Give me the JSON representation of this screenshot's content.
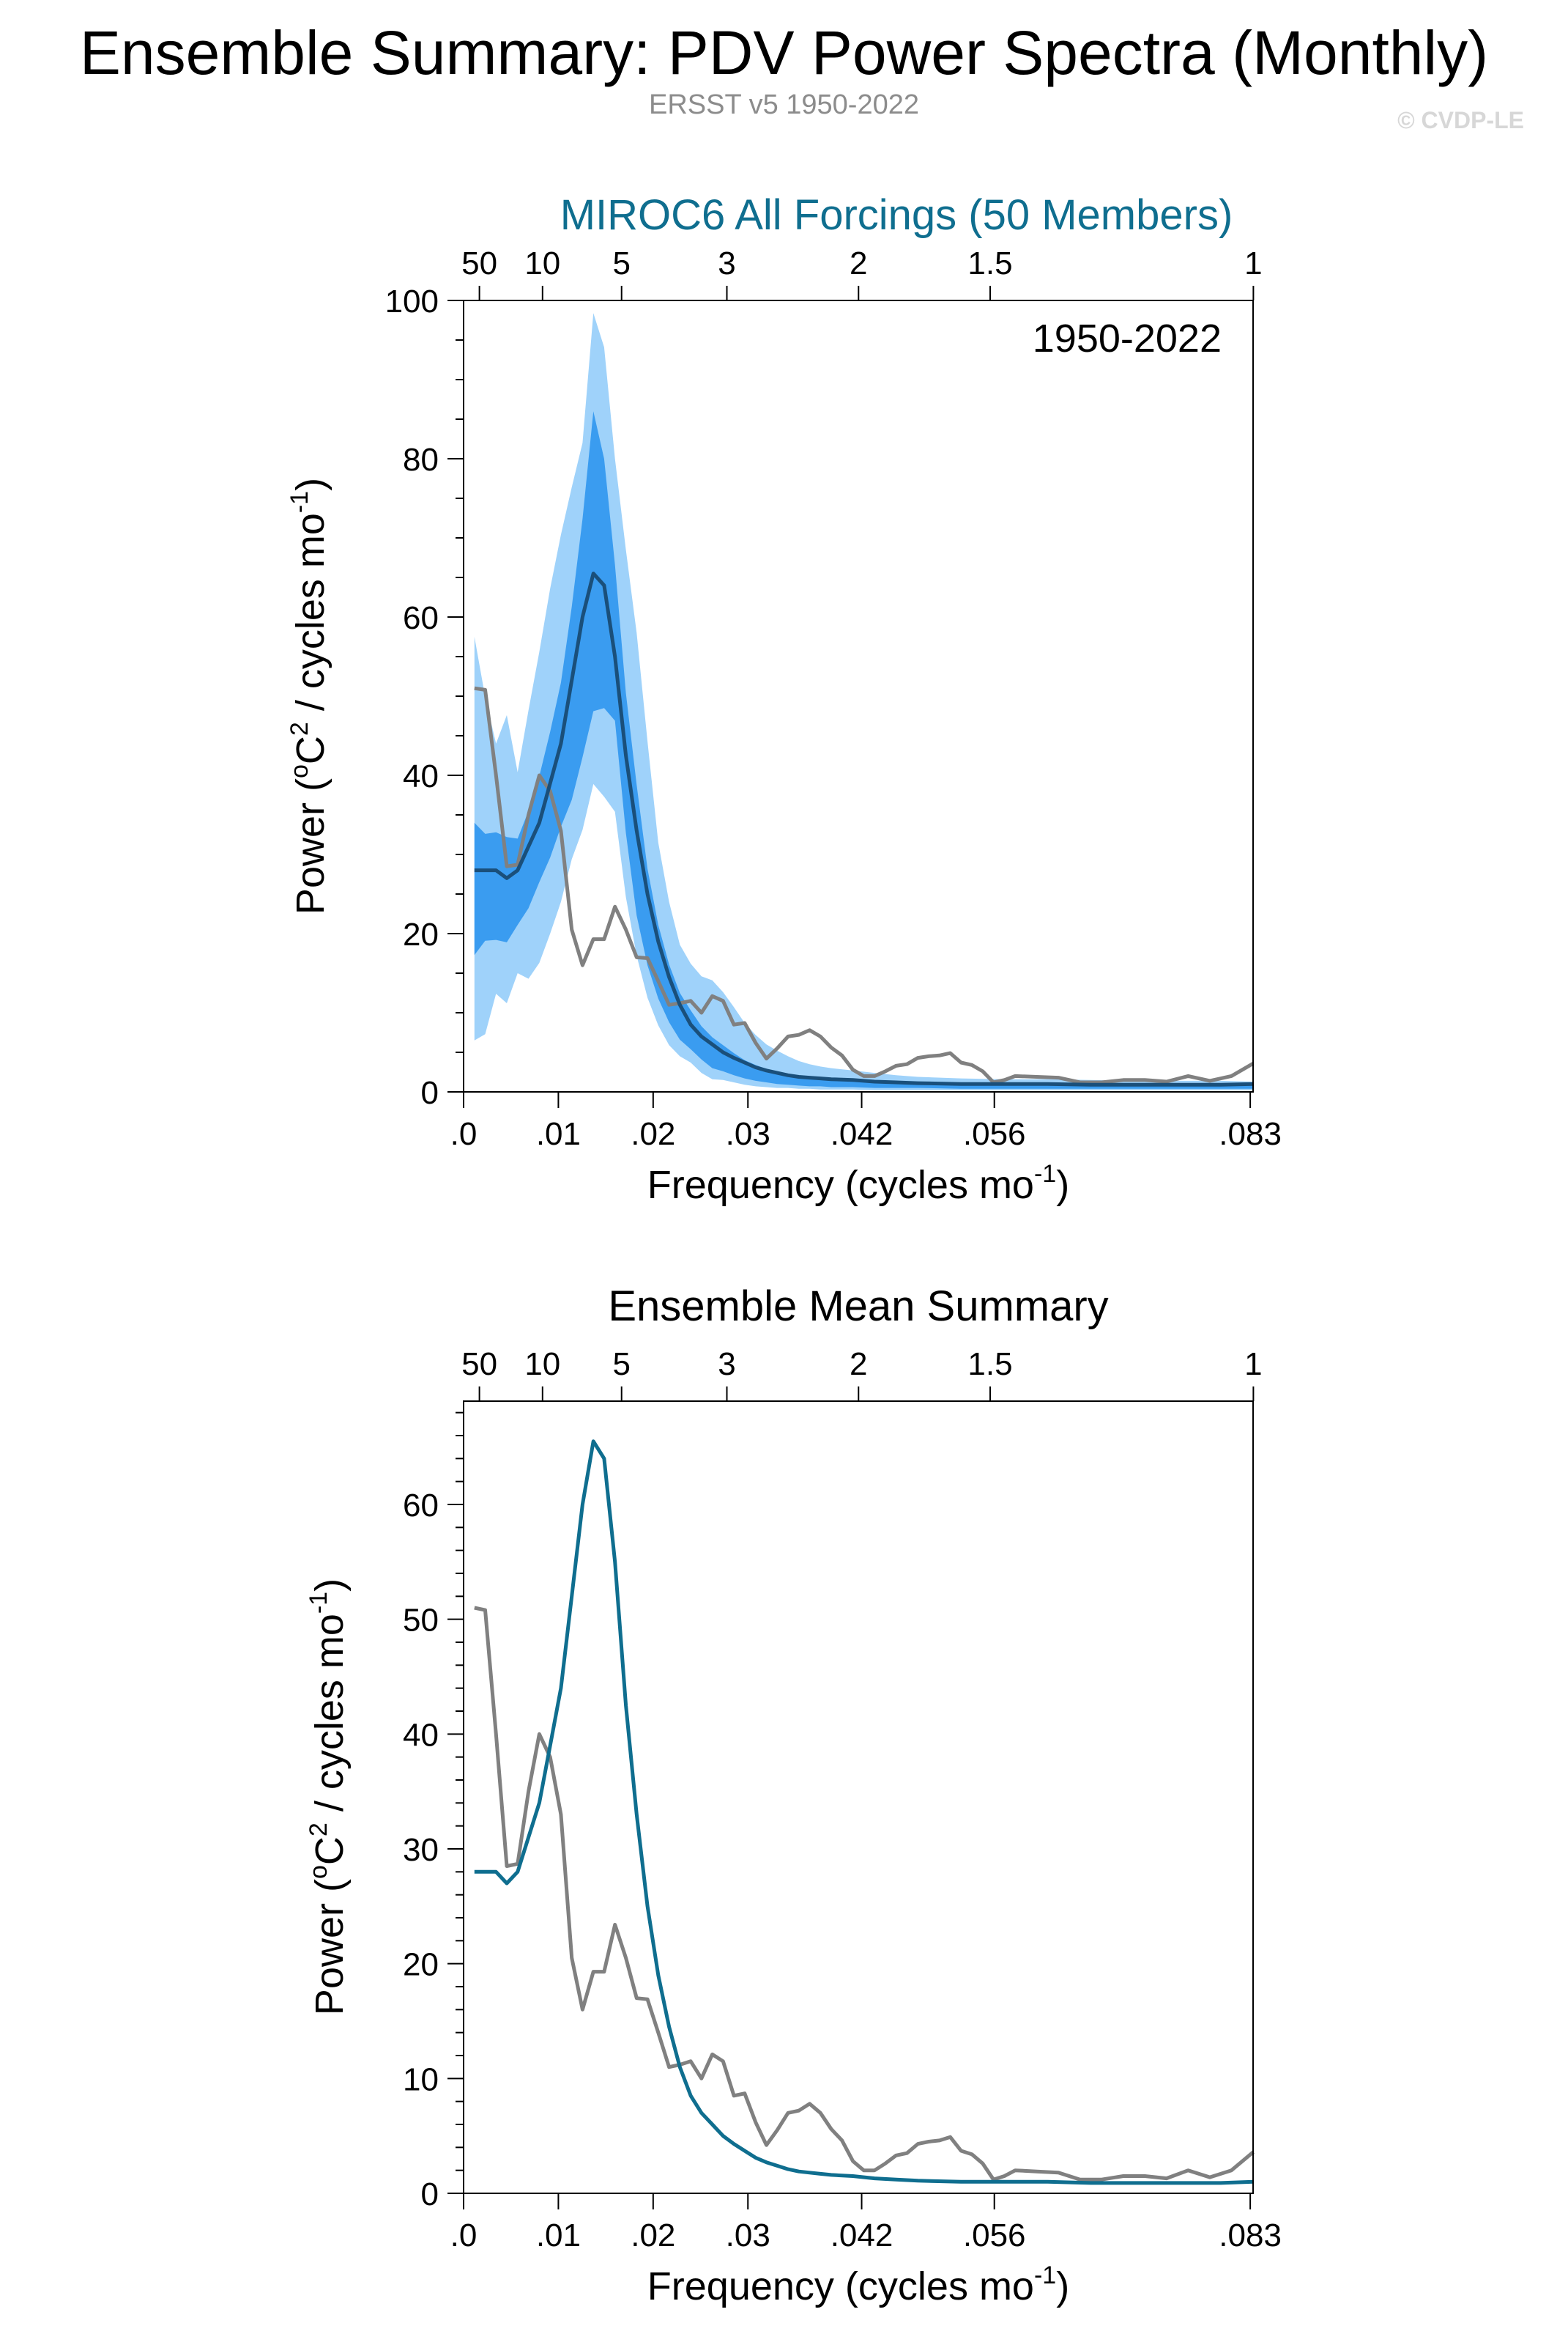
{
  "header": {
    "title": "Ensemble Summary: PDV Power Spectra (Monthly)",
    "subtitle": "ERSST v5 1950-2022",
    "copyright": "© CVDP-LE"
  },
  "chart_data": [
    {
      "type": "area",
      "title": "MIROC6 All Forcings (50 Members)",
      "title_color": "#0f6e8f",
      "annotation": "1950-2022",
      "xlabel": "Frequency (cycles mo",
      "xlabel_sup": "-1",
      "xlabel_end": ")",
      "ylabel_pre": "Power (",
      "ylabel_sup1": "o",
      "ylabel_mid": "C",
      "ylabel_sup2": "2",
      "ylabel_post": " / cycles mo",
      "ylabel_sup3": "-1",
      "ylabel_end": ")",
      "xlim": [
        0,
        0.0833
      ],
      "ylim": [
        0,
        100
      ],
      "x_ticks": [
        {
          "value": 0.0,
          "label": ".0"
        },
        {
          "value": 0.01,
          "label": ".01"
        },
        {
          "value": 0.02,
          "label": ".02"
        },
        {
          "value": 0.03,
          "label": ".03"
        },
        {
          "value": 0.042,
          "label": ".042"
        },
        {
          "value": 0.056,
          "label": ".056"
        },
        {
          "value": 0.083,
          "label": ".083"
        }
      ],
      "y_ticks": [
        0,
        20,
        40,
        60,
        80,
        100
      ],
      "y_minor_step": 5,
      "top_ticks": [
        {
          "value": 0.00167,
          "label": "50"
        },
        {
          "value": 0.00833,
          "label": "10"
        },
        {
          "value": 0.01667,
          "label": "5"
        },
        {
          "value": 0.02778,
          "label": "3"
        },
        {
          "value": 0.04167,
          "label": "2"
        },
        {
          "value": 0.05556,
          "label": "1.5"
        },
        {
          "value": 0.08333,
          "label": "1"
        }
      ],
      "bands": [
        {
          "name": "outer",
          "color": "#9fd2fa",
          "x": [
            0.00114,
            0.00228,
            0.00342,
            0.00456,
            0.0057,
            0.00685,
            0.00799,
            0.00913,
            0.01027,
            0.01141,
            0.01255,
            0.01369,
            0.01483,
            0.01597,
            0.01712,
            0.01826,
            0.0194,
            0.02054,
            0.02168,
            0.02282,
            0.02396,
            0.0251,
            0.02624,
            0.02738,
            0.02852,
            0.02966,
            0.03081,
            0.03195,
            0.03309,
            0.03423,
            0.03537,
            0.03651,
            0.03765,
            0.03879,
            0.04108,
            0.04336,
            0.04564,
            0.04793,
            0.05249,
            0.05706,
            0.06162,
            0.06618,
            0.07074,
            0.07531,
            0.07987,
            0.08333
          ],
          "lo": [
            6.5,
            7.3,
            12.4,
            11.2,
            15.0,
            14.3,
            16.3,
            20.0,
            24.0,
            29.4,
            33.1,
            38.9,
            37.3,
            35.4,
            24.6,
            17.2,
            11.9,
            8.4,
            5.9,
            4.5,
            3.7,
            2.4,
            1.6,
            1.5,
            1.2,
            0.9,
            0.7,
            0.6,
            0.5,
            0.5,
            0.4,
            0.4,
            0.3,
            0.3,
            0.3,
            0.2,
            0.2,
            0.2,
            0.2,
            0.2,
            0.2,
            0.2,
            0.2,
            0.2,
            0.2,
            0.2
          ],
          "hi": [
            57.5,
            49.9,
            44.0,
            47.6,
            40.4,
            48.2,
            55.6,
            63.6,
            70.4,
            76.4,
            82.0,
            98.4,
            94.1,
            80.0,
            68.5,
            58.0,
            44.3,
            31.5,
            24.0,
            18.6,
            16.2,
            14.6,
            14.1,
            12.6,
            10.7,
            8.7,
            7.2,
            6.0,
            5.2,
            4.5,
            3.9,
            3.5,
            3.2,
            3.0,
            2.7,
            2.4,
            2.1,
            1.9,
            1.7,
            1.6,
            1.6,
            1.5,
            1.4,
            1.4,
            1.4,
            1.3
          ]
        },
        {
          "name": "inner",
          "color": "#3a9cf0",
          "x": [
            0.00114,
            0.00228,
            0.00342,
            0.00456,
            0.0057,
            0.00685,
            0.00799,
            0.00913,
            0.01027,
            0.01141,
            0.01255,
            0.01369,
            0.01483,
            0.01597,
            0.01712,
            0.01826,
            0.0194,
            0.02054,
            0.02168,
            0.02282,
            0.02396,
            0.0251,
            0.02624,
            0.02738,
            0.02852,
            0.02966,
            0.03081,
            0.03195,
            0.03309,
            0.03423,
            0.03537,
            0.03651,
            0.03765,
            0.03879,
            0.04108,
            0.04336,
            0.04564,
            0.04793,
            0.05249,
            0.05706,
            0.06162,
            0.06618,
            0.07074,
            0.07531,
            0.07987,
            0.08333
          ],
          "lo": [
            17.3,
            19.1,
            19.2,
            18.9,
            21.1,
            23.2,
            26.5,
            29.6,
            33.5,
            36.9,
            42.3,
            48.1,
            48.5,
            46.9,
            32.7,
            22.3,
            16.0,
            11.8,
            8.8,
            6.6,
            5.4,
            4.1,
            3.0,
            2.6,
            2.1,
            1.7,
            1.4,
            1.2,
            1.0,
            0.9,
            0.8,
            0.7,
            0.7,
            0.6,
            0.6,
            0.5,
            0.5,
            0.5,
            0.4,
            0.4,
            0.4,
            0.4,
            0.4,
            0.4,
            0.4,
            0.4
          ],
          "hi": [
            34.0,
            32.6,
            32.8,
            32.2,
            32.0,
            35.5,
            39.9,
            45.5,
            51.7,
            61.3,
            72.4,
            86.0,
            80.0,
            66.6,
            50.4,
            38.8,
            28.2,
            21.1,
            16.1,
            12.5,
            10.3,
            8.3,
            6.9,
            5.9,
            4.9,
            4.0,
            3.4,
            2.9,
            2.5,
            2.2,
            1.9,
            1.7,
            1.6,
            1.5,
            1.4,
            1.3,
            1.2,
            1.2,
            1.1,
            1.1,
            1.1,
            1.1,
            1.1,
            1.1,
            1.1,
            1.1
          ]
        }
      ],
      "series": [
        {
          "role": "ensemble_mean",
          "color": "#1a4f7a",
          "x": [
            0.00114,
            0.00228,
            0.00342,
            0.00456,
            0.0057,
            0.00685,
            0.00799,
            0.00913,
            0.01027,
            0.01141,
            0.01255,
            0.01369,
            0.01483,
            0.01597,
            0.01712,
            0.01826,
            0.0194,
            0.02054,
            0.02168,
            0.02282,
            0.02396,
            0.0251,
            0.02624,
            0.02738,
            0.02852,
            0.02966,
            0.03081,
            0.03195,
            0.03309,
            0.03423,
            0.03537,
            0.03651,
            0.03765,
            0.03879,
            0.04108,
            0.04336,
            0.04564,
            0.04793,
            0.05249,
            0.05706,
            0.06162,
            0.06618,
            0.07074,
            0.07531,
            0.07987,
            0.08333
          ],
          "y": [
            28.0,
            28.0,
            28.0,
            27.0,
            28.0,
            31.0,
            34.0,
            39.0,
            44.0,
            52.0,
            60.0,
            65.5,
            64.0,
            55.0,
            42.5,
            33.0,
            25.0,
            19.0,
            14.5,
            11.0,
            8.5,
            7.0,
            6.0,
            5.0,
            4.3,
            3.7,
            3.1,
            2.7,
            2.4,
            2.1,
            1.9,
            1.8,
            1.7,
            1.6,
            1.5,
            1.3,
            1.2,
            1.1,
            1.0,
            1.0,
            1.0,
            0.9,
            0.9,
            0.9,
            0.9,
            1.0
          ]
        },
        {
          "role": "observations",
          "color": "#808080",
          "x": [
            0.00114,
            0.00228,
            0.00342,
            0.00456,
            0.0057,
            0.00685,
            0.00799,
            0.00913,
            0.01027,
            0.01141,
            0.01255,
            0.01369,
            0.01483,
            0.01597,
            0.01712,
            0.01826,
            0.0194,
            0.02054,
            0.02168,
            0.02282,
            0.02396,
            0.0251,
            0.02624,
            0.02738,
            0.02852,
            0.02966,
            0.03081,
            0.03195,
            0.03309,
            0.03423,
            0.03537,
            0.03651,
            0.03765,
            0.03879,
            0.03993,
            0.04108,
            0.04222,
            0.04336,
            0.0445,
            0.04564,
            0.04678,
            0.04793,
            0.04907,
            0.05021,
            0.05135,
            0.05249,
            0.05363,
            0.05477,
            0.05591,
            0.05706,
            0.0582,
            0.06048,
            0.06276,
            0.06504,
            0.06733,
            0.06961,
            0.07189,
            0.07417,
            0.07645,
            0.07873,
            0.08101,
            0.08333
          ],
          "y": [
            51.0,
            50.8,
            40.0,
            28.5,
            28.7,
            35.0,
            40.0,
            38.0,
            33.0,
            20.5,
            16.0,
            19.3,
            19.3,
            23.4,
            20.5,
            17.0,
            16.9,
            14.0,
            11.0,
            11.2,
            11.5,
            10.0,
            12.1,
            11.5,
            8.5,
            8.7,
            6.2,
            4.2,
            5.5,
            7.0,
            7.2,
            7.8,
            7.0,
            5.6,
            4.6,
            2.8,
            2.0,
            2.0,
            2.6,
            3.3,
            3.5,
            4.3,
            4.5,
            4.6,
            4.9,
            3.7,
            3.4,
            2.6,
            1.2,
            1.5,
            2.0,
            1.9,
            1.8,
            1.2,
            1.2,
            1.5,
            1.5,
            1.3,
            2.0,
            1.4,
            2.0,
            3.6
          ]
        }
      ]
    },
    {
      "type": "line",
      "title": "Ensemble Mean Summary",
      "title_color": "#000000",
      "xlabel": "Frequency (cycles mo",
      "xlabel_sup": "-1",
      "xlabel_end": ")",
      "ylabel_pre": "Power (",
      "ylabel_sup1": "o",
      "ylabel_mid": "C",
      "ylabel_sup2": "2",
      "ylabel_post": " / cycles mo",
      "ylabel_sup3": "-1",
      "ylabel_end": ")",
      "xlim": [
        0,
        0.0833
      ],
      "ylim": [
        0,
        69
      ],
      "x_ticks": [
        {
          "value": 0.0,
          "label": ".0"
        },
        {
          "value": 0.01,
          "label": ".01"
        },
        {
          "value": 0.02,
          "label": ".02"
        },
        {
          "value": 0.03,
          "label": ".03"
        },
        {
          "value": 0.042,
          "label": ".042"
        },
        {
          "value": 0.056,
          "label": ".056"
        },
        {
          "value": 0.083,
          "label": ".083"
        }
      ],
      "y_ticks": [
        0,
        10,
        20,
        30,
        40,
        50,
        60
      ],
      "y_minor_step": 2,
      "top_ticks": [
        {
          "value": 0.00167,
          "label": "50"
        },
        {
          "value": 0.00833,
          "label": "10"
        },
        {
          "value": 0.01667,
          "label": "5"
        },
        {
          "value": 0.02778,
          "label": "3"
        },
        {
          "value": 0.04167,
          "label": "2"
        },
        {
          "value": 0.05556,
          "label": "1.5"
        },
        {
          "value": 0.08333,
          "label": "1"
        }
      ],
      "bands": [],
      "series": [
        {
          "role": "ensemble_mean",
          "color": "#0f6e8f",
          "x": [
            0.00114,
            0.00228,
            0.00342,
            0.00456,
            0.0057,
            0.00685,
            0.00799,
            0.00913,
            0.01027,
            0.01141,
            0.01255,
            0.01369,
            0.01483,
            0.01597,
            0.01712,
            0.01826,
            0.0194,
            0.02054,
            0.02168,
            0.02282,
            0.02396,
            0.0251,
            0.02624,
            0.02738,
            0.02852,
            0.02966,
            0.03081,
            0.03195,
            0.03309,
            0.03423,
            0.03537,
            0.03651,
            0.03765,
            0.03879,
            0.04108,
            0.04336,
            0.04564,
            0.04793,
            0.05249,
            0.05706,
            0.06162,
            0.06618,
            0.07074,
            0.07531,
            0.07987,
            0.08333
          ],
          "y": [
            28.0,
            28.0,
            28.0,
            27.0,
            28.0,
            31.0,
            34.0,
            39.0,
            44.0,
            52.0,
            60.0,
            65.5,
            64.0,
            55.0,
            42.5,
            33.0,
            25.0,
            19.0,
            14.5,
            11.0,
            8.5,
            7.0,
            6.0,
            5.0,
            4.3,
            3.7,
            3.1,
            2.7,
            2.4,
            2.1,
            1.9,
            1.8,
            1.7,
            1.6,
            1.5,
            1.3,
            1.2,
            1.1,
            1.0,
            1.0,
            1.0,
            0.9,
            0.9,
            0.9,
            0.9,
            1.0
          ]
        },
        {
          "role": "observations",
          "color": "#808080",
          "x": [
            0.00114,
            0.00228,
            0.00342,
            0.00456,
            0.0057,
            0.00685,
            0.00799,
            0.00913,
            0.01027,
            0.01141,
            0.01255,
            0.01369,
            0.01483,
            0.01597,
            0.01712,
            0.01826,
            0.0194,
            0.02054,
            0.02168,
            0.02282,
            0.02396,
            0.0251,
            0.02624,
            0.02738,
            0.02852,
            0.02966,
            0.03081,
            0.03195,
            0.03309,
            0.03423,
            0.03537,
            0.03651,
            0.03765,
            0.03879,
            0.03993,
            0.04108,
            0.04222,
            0.04336,
            0.0445,
            0.04564,
            0.04678,
            0.04793,
            0.04907,
            0.05021,
            0.05135,
            0.05249,
            0.05363,
            0.05477,
            0.05591,
            0.05706,
            0.0582,
            0.06048,
            0.06276,
            0.06504,
            0.06733,
            0.06961,
            0.07189,
            0.07417,
            0.07645,
            0.07873,
            0.08101,
            0.08333
          ],
          "y": [
            51.0,
            50.8,
            40.0,
            28.5,
            28.7,
            35.0,
            40.0,
            38.0,
            33.0,
            20.5,
            16.0,
            19.3,
            19.3,
            23.4,
            20.5,
            17.0,
            16.9,
            14.0,
            11.0,
            11.2,
            11.5,
            10.0,
            12.1,
            11.5,
            8.5,
            8.7,
            6.2,
            4.2,
            5.5,
            7.0,
            7.2,
            7.8,
            7.0,
            5.6,
            4.6,
            2.8,
            2.0,
            2.0,
            2.6,
            3.3,
            3.5,
            4.3,
            4.5,
            4.6,
            4.9,
            3.7,
            3.4,
            2.6,
            1.2,
            1.5,
            2.0,
            1.9,
            1.8,
            1.2,
            1.2,
            1.5,
            1.5,
            1.3,
            2.0,
            1.4,
            2.0,
            3.6
          ]
        }
      ]
    }
  ]
}
